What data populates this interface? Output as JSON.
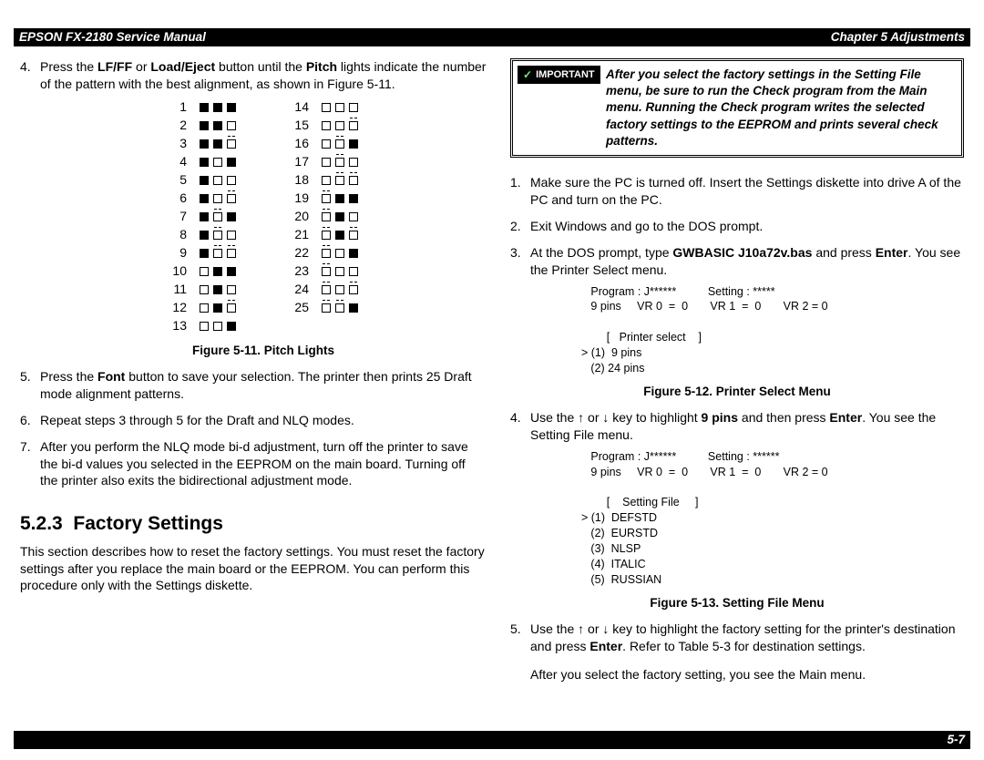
{
  "header": {
    "left": "EPSON FX-2180 Service Manual",
    "right": "Chapter 5  Adjustments"
  },
  "footer": {
    "page": "5-7"
  },
  "left_col": {
    "step4_prefix": "Press the ",
    "step4_b1": "LF/FF",
    "step4_mid1": " or ",
    "step4_b2": "Load/Eject",
    "step4_mid2": " button until the ",
    "step4_b3": "Pitch",
    "step4_suffix": " lights indicate the number of the pattern with the best alignment, as shown in Figure 5-11.",
    "fig11_caption": "Figure 5-11. Pitch Lights",
    "step5_prefix": "Press the ",
    "step5_b1": "Font",
    "step5_suffix": " button to save your selection. The printer then prints 25 Draft mode alignment patterns.",
    "step6": "Repeat steps 3 through 5 for the Draft and NLQ modes.",
    "step7": "After you perform the NLQ mode bi-d adjustment, turn off the printer to save the bi-d values you selected in the EEPROM on the main board. Turning off the printer also exits the bidirectional adjustment mode.",
    "section_num": "5.2.3",
    "section_title": "Factory Settings",
    "section_para": "This section describes how to reset the factory settings. You must reset the factory settings after you replace the main board or the EEPROM. You can perform this procedure only with the Settings diskette.",
    "pitch_left": [
      {
        "n": "1",
        "p": [
          "f",
          "f",
          "f"
        ]
      },
      {
        "n": "2",
        "p": [
          "f",
          "f",
          "e"
        ]
      },
      {
        "n": "3",
        "p": [
          "f",
          "f",
          "d"
        ]
      },
      {
        "n": "4",
        "p": [
          "f",
          "e",
          "f"
        ]
      },
      {
        "n": "5",
        "p": [
          "f",
          "e",
          "e"
        ]
      },
      {
        "n": "6",
        "p": [
          "f",
          "e",
          "d"
        ]
      },
      {
        "n": "7",
        "p": [
          "f",
          "d",
          "f"
        ]
      },
      {
        "n": "8",
        "p": [
          "f",
          "d",
          "e"
        ]
      },
      {
        "n": "9",
        "p": [
          "f",
          "d",
          "d"
        ]
      },
      {
        "n": "10",
        "p": [
          "e",
          "f",
          "f"
        ]
      },
      {
        "n": "11",
        "p": [
          "e",
          "f",
          "e"
        ]
      },
      {
        "n": "12",
        "p": [
          "e",
          "f",
          "d"
        ]
      },
      {
        "n": "13",
        "p": [
          "e",
          "e",
          "f"
        ]
      }
    ],
    "pitch_right": [
      {
        "n": "14",
        "p": [
          "e",
          "e",
          "e"
        ]
      },
      {
        "n": "15",
        "p": [
          "e",
          "e",
          "d"
        ]
      },
      {
        "n": "16",
        "p": [
          "e",
          "d",
          "f"
        ]
      },
      {
        "n": "17",
        "p": [
          "e",
          "d",
          "e"
        ]
      },
      {
        "n": "18",
        "p": [
          "e",
          "d",
          "d"
        ]
      },
      {
        "n": "19",
        "p": [
          "d",
          "f",
          "f"
        ]
      },
      {
        "n": "20",
        "p": [
          "d",
          "f",
          "e"
        ]
      },
      {
        "n": "21",
        "p": [
          "d",
          "f",
          "d"
        ]
      },
      {
        "n": "22",
        "p": [
          "d",
          "e",
          "f"
        ]
      },
      {
        "n": "23",
        "p": [
          "d",
          "e",
          "e"
        ]
      },
      {
        "n": "24",
        "p": [
          "d",
          "e",
          "d"
        ]
      },
      {
        "n": "25",
        "p": [
          "d",
          "d",
          "f"
        ]
      }
    ]
  },
  "right_col": {
    "important_label": "IMPORTANT",
    "important_text": "After you select the factory settings in the Setting File menu, be sure to run the Check program from the Main menu. Running the Check program writes the selected factory settings to the EEPROM and prints several check patterns.",
    "step1": "Make sure the PC is turned off. Insert the Settings diskette into drive A of the PC and turn on the PC.",
    "step2": "Exit Windows and go to the DOS prompt.",
    "step3_prefix": "At the DOS prompt, type ",
    "step3_b1": "GWBASIC J10a72v.bas",
    "step3_mid": " and press ",
    "step3_b2": "Enter",
    "step3_suffix": ". You see the Printer Select menu.",
    "fig12_block": "   Program : J******          Setting : *****\n   9 pins     VR 0  =  0       VR 1  =  0       VR 2 = 0\n\n        [   Printer select    ]\n> (1)  9 pins\n   (2) 24 pins",
    "fig12_caption": "Figure 5-12. Printer Select Menu",
    "step4_prefix": "Use the ",
    "step4_mid1": " or ",
    "step4_mid2": " key to highlight ",
    "step4_b1": "9 pins",
    "step4_mid3": " and then press ",
    "step4_b2": "Enter",
    "step4_suffix": ". You see the Setting File menu.",
    "fig13_block": "   Program : J******          Setting : ******\n   9 pins     VR 0  =  0       VR 1  =  0       VR 2 = 0\n\n        [    Setting File     ]\n> (1)  DEFSTD\n   (2)  EURSTD\n   (3)  NLSP\n   (4)  ITALIC\n   (5)  RUSSIAN",
    "fig13_caption": "Figure 5-13. Setting File Menu",
    "step5_prefix": "Use the ",
    "step5_mid1": " or ",
    "step5_mid2": " key to highlight the factory setting for the printer's destination and press ",
    "step5_b1": "Enter",
    "step5_suffix": ". Refer to Table 5-3 for destination settings.",
    "step5_tail": "After you select the factory setting, you see the Main menu."
  }
}
